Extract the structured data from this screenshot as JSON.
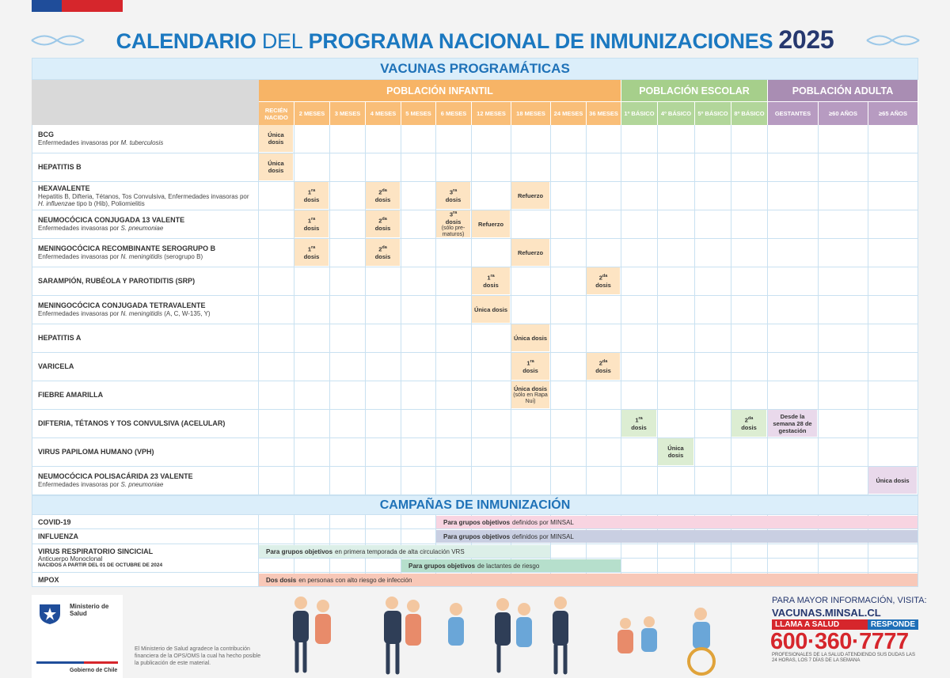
{
  "header": {
    "title_bold": "CALENDARIO",
    "title_light": "DEL",
    "title_rest": "PROGRAMA NACIONAL DE INMUNIZACIONES",
    "year": "2025"
  },
  "table": {
    "section": "VACUNAS PROGRAMÁTICAS",
    "groups": [
      {
        "name": "POBLACIÓN INFANTIL",
        "columns": [
          "RECIÉN NACIDO",
          "2 MESES",
          "3 MESES",
          "4 MESES",
          "5 MESES",
          "6 MESES",
          "12 MESES",
          "18 MESES",
          "24 MESES",
          "36 MESES"
        ]
      },
      {
        "name": "POBLACIÓN ESCOLAR",
        "columns": [
          "1º BÁSICO",
          "4º BÁSICO",
          "5º BÁSICO",
          "8º BÁSICO"
        ]
      },
      {
        "name": "POBLACIÓN ADULTA",
        "columns": [
          "GESTANTES",
          "≥60 AÑOS",
          "≥65 AÑOS"
        ]
      }
    ],
    "rows": [
      {
        "name": "BCG",
        "desc": [
          "Enfermedades invasoras por ",
          "M. tuberculosis"
        ],
        "cells": [
          {
            "text": "Única dosis"
          },
          null,
          null,
          null,
          null,
          null,
          null,
          null,
          null,
          null,
          null,
          null,
          null,
          null,
          null,
          null,
          null
        ]
      },
      {
        "name": "HEPATITIS B",
        "cells": [
          {
            "text": "Única dosis"
          },
          null,
          null,
          null,
          null,
          null,
          null,
          null,
          null,
          null,
          null,
          null,
          null,
          null,
          null,
          null,
          null
        ]
      },
      {
        "name": "HEXAVALENTE",
        "desc": [
          "Hepatitis B, Difteria, Tétanos, Tos Convulsiva, Enfermedades invasoras por ",
          "H. influenzae",
          " tipo b (Hib), Poliomielitis"
        ],
        "cells": [
          null,
          {
            "ord": "1",
            "sup": "ra",
            "text": "dosis"
          },
          null,
          {
            "ord": "2",
            "sup": "da",
            "text": "dosis"
          },
          null,
          {
            "ord": "3",
            "sup": "ra",
            "text": "dosis"
          },
          null,
          {
            "text": "Refuerzo"
          },
          null,
          null,
          null,
          null,
          null,
          null,
          null,
          null,
          null
        ]
      },
      {
        "name": "NEUMOCÓCICA CONJUGADA 13 VALENTE",
        "desc": [
          "Enfermedades invasoras por ",
          "S. pneumoniae"
        ],
        "cells": [
          null,
          {
            "ord": "1",
            "sup": "ra",
            "text": "dosis"
          },
          null,
          {
            "ord": "2",
            "sup": "da",
            "text": "dosis"
          },
          null,
          {
            "ord": "3",
            "sup": "ra",
            "text": "dosis",
            "note": "(sólo pre-maturos)"
          },
          {
            "text": "Refuerzo"
          },
          null,
          null,
          null,
          null,
          null,
          null,
          null,
          null,
          null,
          null
        ]
      },
      {
        "name": "MENINGOCÓCICA RECOMBINANTE SEROGRUPO B",
        "desc": [
          "Enfermedades invasoras por ",
          "N. meningitidis",
          " (serogrupo B)"
        ],
        "cells": [
          null,
          {
            "ord": "1",
            "sup": "ra",
            "text": "dosis"
          },
          null,
          {
            "ord": "2",
            "sup": "da",
            "text": "dosis"
          },
          null,
          null,
          null,
          {
            "text": "Refuerzo"
          },
          null,
          null,
          null,
          null,
          null,
          null,
          null,
          null,
          null
        ]
      },
      {
        "name": "SARAMPIÓN, RUBÉOLA Y PAROTIDITIS (SRP)",
        "cells": [
          null,
          null,
          null,
          null,
          null,
          null,
          {
            "ord": "1",
            "sup": "ra",
            "text": "dosis"
          },
          null,
          null,
          {
            "ord": "2",
            "sup": "da",
            "text": "dosis"
          },
          null,
          null,
          null,
          null,
          null,
          null,
          null
        ]
      },
      {
        "name": "MENINGOCÓCICA CONJUGADA TETRAVALENTE",
        "desc": [
          "Enfermedades invasoras por ",
          "N. meningitidis",
          " (A, C, W-135, Y)"
        ],
        "cells": [
          null,
          null,
          null,
          null,
          null,
          null,
          {
            "text": "Única dosis"
          },
          null,
          null,
          null,
          null,
          null,
          null,
          null,
          null,
          null,
          null
        ]
      },
      {
        "name": "HEPATITIS A",
        "cells": [
          null,
          null,
          null,
          null,
          null,
          null,
          null,
          {
            "text": "Única dosis"
          },
          null,
          null,
          null,
          null,
          null,
          null,
          null,
          null,
          null
        ]
      },
      {
        "name": "VARICELA",
        "cells": [
          null,
          null,
          null,
          null,
          null,
          null,
          null,
          {
            "ord": "1",
            "sup": "ra",
            "text": "dosis"
          },
          null,
          {
            "ord": "2",
            "sup": "da",
            "text": "dosis"
          },
          null,
          null,
          null,
          null,
          null,
          null,
          null
        ]
      },
      {
        "name": "FIEBRE AMARILLA",
        "cells": [
          null,
          null,
          null,
          null,
          null,
          null,
          null,
          {
            "text": "Única dosis",
            "note": "(sólo en Rapa Nui)"
          },
          null,
          null,
          null,
          null,
          null,
          null,
          null,
          null,
          null
        ]
      },
      {
        "name": "DIFTERIA, TÉTANOS Y TOS CONVULSIVA (ACELULAR)",
        "cells": [
          null,
          null,
          null,
          null,
          null,
          null,
          null,
          null,
          null,
          null,
          {
            "ord": "1",
            "sup": "ra",
            "text": "dosis"
          },
          null,
          null,
          {
            "ord": "2",
            "sup": "da",
            "text": "dosis"
          },
          {
            "text": "Desde la semana 28 de gestación"
          },
          null,
          null
        ]
      },
      {
        "name": "VIRUS PAPILOMA HUMANO (VPH)",
        "cells": [
          null,
          null,
          null,
          null,
          null,
          null,
          null,
          null,
          null,
          null,
          null,
          {
            "text": "Única dosis"
          },
          null,
          null,
          null,
          null,
          null
        ]
      },
      {
        "name": "NEUMOCÓCICA POLISACÁRIDA 23 VALENTE",
        "desc": [
          "Enfermedades invasoras por ",
          "S. pneumoniae"
        ],
        "cells": [
          null,
          null,
          null,
          null,
          null,
          null,
          null,
          null,
          null,
          null,
          null,
          null,
          null,
          null,
          null,
          null,
          {
            "text": "Única dosis"
          }
        ]
      }
    ]
  },
  "campaigns": {
    "title": "CAMPAÑAS DE INMUNIZACIÓN",
    "rows": [
      {
        "name": "COVID-19",
        "bars": [
          {
            "bold": "Para grupos objetivos",
            "text": "definidos por MINSAL"
          }
        ]
      },
      {
        "name": "INFLUENZA",
        "bars": [
          {
            "bold": "Para grupos objetivos",
            "text": "definidos por MINSAL"
          }
        ]
      },
      {
        "name": "VIRUS RESPIRATORIO SINCICIAL",
        "sub": "Anticuerpo Monoclonal",
        "note": "NACIDOS A PARTIR DEL 01 DE OCTUBRE DE 2024",
        "bars": [
          {
            "bold": "Para grupos objetivos",
            "text": "en primera temporada de alta circulación VRS"
          },
          {
            "bold": "Para grupos objetivos",
            "text": "de lactantes de riesgo"
          }
        ]
      },
      {
        "name": "MPOX",
        "bars": [
          {
            "bold": "Dos dosis",
            "text": "en personas con alto riesgo de infección"
          }
        ]
      }
    ]
  },
  "footer": {
    "ministry": "Ministerio de Salud",
    "government": "Gobierno de Chile",
    "thanks": "El Ministerio de Salud agradece la contribución financiera de la OPS/OMS la cual ha hecho posible la publicación de este material.",
    "info": "PARA MAYOR INFORMACIÓN, VISITA:",
    "url": "VACUNAS.MINSAL.CL",
    "call": "LLAMA A SALUD",
    "call_brand": "RESPONDE",
    "phone": "600·360·7777",
    "hours": "PROFESIONALES DE LA SALUD ATENDIENDO SUS DUDAS LAS 24 HORAS, LOS 7 DÍAS DE LA SEMANA"
  }
}
